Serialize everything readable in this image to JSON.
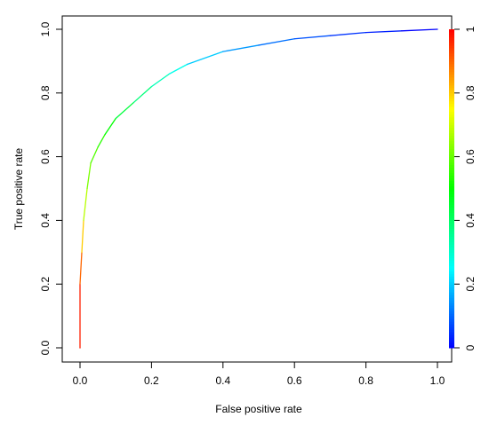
{
  "chart_data": {
    "type": "line",
    "x_label": "False positive rate",
    "y_label": "True positive rate",
    "series": [
      {
        "x": [
          0,
          0,
          0.005,
          0.01,
          0.02,
          0.03,
          0.05,
          0.07,
          0.1,
          0.15,
          0.2,
          0.25,
          0.3,
          0.4,
          0.5,
          0.6,
          0.7,
          0.8,
          0.9,
          1
        ],
        "values": [
          0,
          0.2,
          0.3,
          0.4,
          0.5,
          0.58,
          0.63,
          0.67,
          0.72,
          0.77,
          0.82,
          0.86,
          0.89,
          0.93,
          0.95,
          0.97,
          0.98,
          0.99,
          0.995,
          1
        ],
        "cutoffs": [
          1,
          0.97,
          0.9,
          0.8,
          0.68,
          0.62,
          0.58,
          0.54,
          0.5,
          0.44,
          0.38,
          0.32,
          0.27,
          0.2,
          0.15,
          0.11,
          0.08,
          0.05,
          0.03,
          0
        ]
      }
    ],
    "xlim": [
      0,
      1
    ],
    "ylim": [
      0,
      1
    ],
    "xticks": [
      {
        "value": 0,
        "label": "0.0"
      },
      0.2,
      0.4,
      0.6,
      0.8,
      {
        "value": 1,
        "label": "1.0"
      }
    ],
    "yticks": [
      {
        "value": 0,
        "label": "0.0"
      },
      0.2,
      0.4,
      0.6,
      0.8,
      {
        "value": 1,
        "label": "1.0"
      }
    ],
    "colorbar": {
      "lim": [
        0,
        1
      ],
      "ticks": [
        0,
        0.2,
        0.4,
        0.6,
        0.8,
        1
      ]
    }
  }
}
